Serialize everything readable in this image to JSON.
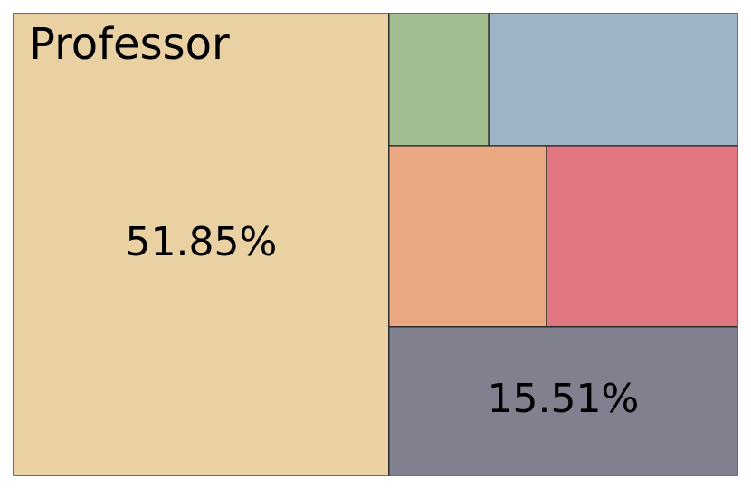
{
  "chart_data": {
    "type": "treemap",
    "tiles": [
      {
        "label": "Professor",
        "value": 51.85,
        "value_label": "51.85%",
        "color": "#e9d1a3"
      },
      {
        "label": "",
        "value": 15.51,
        "value_label": "15.51%",
        "color": "#81808f"
      },
      {
        "label": "",
        "value": 10.34,
        "value_label": "",
        "color": "#e27680"
      },
      {
        "label": "",
        "value": 8.53,
        "value_label": "",
        "color": "#e9a882"
      },
      {
        "label": "",
        "value": 9.83,
        "value_label": "",
        "color": "#9fb5c5"
      },
      {
        "label": "",
        "value": 3.94,
        "value_label": "",
        "color": "#a2bd90"
      }
    ]
  }
}
